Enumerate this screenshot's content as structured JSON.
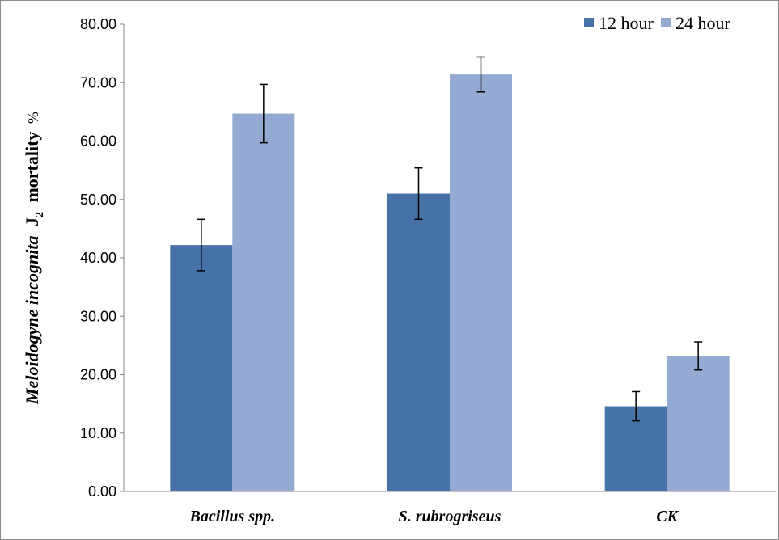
{
  "chart_data": {
    "type": "bar",
    "title": "",
    "categories": [
      "Bacillus spp.",
      "S. rubrogriseus",
      "CK"
    ],
    "series": [
      {
        "name": "12 hour",
        "values": [
          42.2,
          51.0,
          14.6
        ],
        "errors": [
          4.4,
          4.4,
          2.5
        ],
        "color": "#4672a8"
      },
      {
        "name": "24 hour",
        "values": [
          64.7,
          71.4,
          23.2
        ],
        "errors": [
          5.0,
          3.0,
          2.4
        ],
        "color": "#95aad2"
      }
    ],
    "ylabel": {
      "italic_part": "Meloidogyne incognita",
      "bold_part": "J",
      "subscript": "2",
      "bold_suffix": "mortality",
      "unit": "%"
    },
    "ylim": [
      0,
      80
    ],
    "yticks": [
      "0.00",
      "10.00",
      "20.00",
      "30.00",
      "40.00",
      "50.00",
      "60.00",
      "70.00",
      "80.00"
    ],
    "grid": false,
    "legend_position": "top-right"
  }
}
